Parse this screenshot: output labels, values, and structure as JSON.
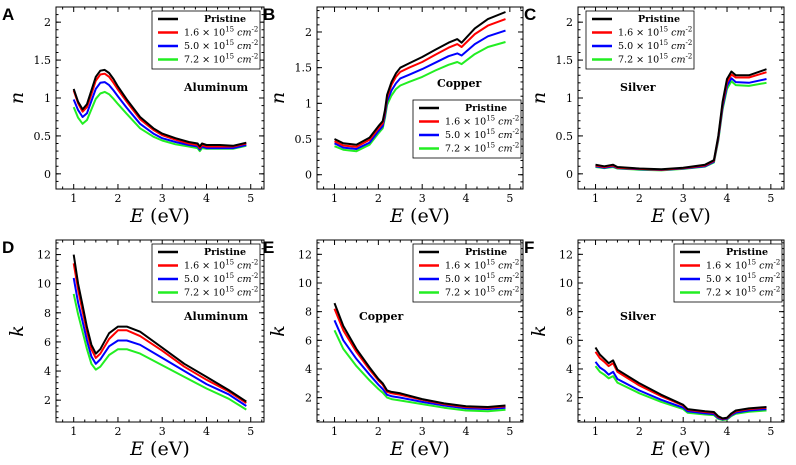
{
  "figure": {
    "series_styles": [
      {
        "name": "Pristine",
        "color": "#000000"
      },
      {
        "name": "1.6 × 10^15 cm^-2",
        "color": "#ff0000"
      },
      {
        "name": "5.0 × 10^15 cm^-2",
        "color": "#0000ff"
      },
      {
        "name": "7.2 × 10^15 cm^-2",
        "color": "#22ee22"
      }
    ]
  },
  "chart_data": [
    {
      "panel": "A",
      "type": "line",
      "material": "Aluminum",
      "xlabel": "E (eV)",
      "ylabel": "n",
      "xlim": [
        0.6,
        5.3
      ],
      "ylim": [
        -0.2,
        2.2
      ],
      "xticks": [
        1,
        2,
        3,
        4,
        5
      ],
      "yticks": [
        0,
        0.5,
        1,
        1.5,
        2
      ],
      "legend": [
        "Pristine",
        "1.6 × 10^15 cm^-2",
        "5.0 × 10^15 cm^-2",
        "7.2 × 10^15 cm^-2"
      ],
      "x": [
        1.0,
        1.1,
        1.2,
        1.3,
        1.4,
        1.5,
        1.6,
        1.7,
        1.8,
        1.9,
        2.0,
        2.2,
        2.5,
        2.8,
        3.0,
        3.3,
        3.6,
        3.8,
        3.85,
        3.9,
        4.0,
        4.3,
        4.6,
        4.9
      ],
      "series": [
        {
          "name": "Pristine",
          "values": [
            1.12,
            0.95,
            0.85,
            0.92,
            1.1,
            1.28,
            1.36,
            1.37,
            1.33,
            1.25,
            1.15,
            0.98,
            0.75,
            0.6,
            0.53,
            0.47,
            0.42,
            0.4,
            0.36,
            0.4,
            0.38,
            0.38,
            0.37,
            0.41
          ]
        },
        {
          "name": "1.6 × 10^15 cm^-2",
          "values": [
            1.1,
            0.93,
            0.82,
            0.88,
            1.05,
            1.23,
            1.31,
            1.32,
            1.28,
            1.2,
            1.11,
            0.95,
            0.72,
            0.58,
            0.51,
            0.45,
            0.4,
            0.38,
            0.34,
            0.38,
            0.36,
            0.36,
            0.36,
            0.4
          ]
        },
        {
          "name": "5.0 × 10^15 cm^-2",
          "values": [
            0.98,
            0.84,
            0.75,
            0.8,
            0.96,
            1.12,
            1.2,
            1.21,
            1.17,
            1.1,
            1.02,
            0.87,
            0.66,
            0.53,
            0.47,
            0.42,
            0.38,
            0.36,
            0.32,
            0.36,
            0.34,
            0.34,
            0.34,
            0.38
          ]
        },
        {
          "name": "7.2 × 10^15 cm^-2",
          "values": [
            0.88,
            0.74,
            0.66,
            0.71,
            0.85,
            0.99,
            1.06,
            1.08,
            1.05,
            0.99,
            0.92,
            0.79,
            0.6,
            0.49,
            0.44,
            0.39,
            0.36,
            0.34,
            0.3,
            0.34,
            0.33,
            0.33,
            0.33,
            0.37
          ]
        }
      ]
    },
    {
      "panel": "B",
      "type": "line",
      "material": "Copper",
      "xlabel": "E (eV)",
      "ylabel": "n",
      "xlim": [
        0.6,
        5.3
      ],
      "ylim": [
        -0.2,
        2.35
      ],
      "xticks": [
        1,
        2,
        3,
        4,
        5
      ],
      "yticks": [
        0,
        0.5,
        1,
        1.5,
        2
      ],
      "legend": [
        "Pristine",
        "1.6 × 10^15 cm^-2",
        "5.0 × 10^15 cm^-2",
        "7.2 × 10^15 cm^-2"
      ],
      "x": [
        1.0,
        1.2,
        1.5,
        1.8,
        2.0,
        2.1,
        2.15,
        2.2,
        2.3,
        2.4,
        2.5,
        2.7,
        3.0,
        3.3,
        3.6,
        3.8,
        3.9,
        4.2,
        4.5,
        4.9
      ],
      "series": [
        {
          "name": "Pristine",
          "values": [
            0.5,
            0.44,
            0.42,
            0.52,
            0.68,
            0.75,
            0.9,
            1.12,
            1.3,
            1.42,
            1.5,
            1.56,
            1.65,
            1.75,
            1.85,
            1.9,
            1.85,
            2.05,
            2.18,
            2.28
          ]
        },
        {
          "name": "1.6 × 10^15 cm^-2",
          "values": [
            0.47,
            0.41,
            0.39,
            0.49,
            0.65,
            0.72,
            0.87,
            1.08,
            1.26,
            1.37,
            1.44,
            1.5,
            1.58,
            1.68,
            1.78,
            1.83,
            1.79,
            1.97,
            2.09,
            2.18
          ]
        },
        {
          "name": "5.0 × 10^15 cm^-2",
          "values": [
            0.44,
            0.38,
            0.36,
            0.45,
            0.61,
            0.68,
            0.83,
            1.03,
            1.18,
            1.28,
            1.35,
            1.4,
            1.48,
            1.57,
            1.66,
            1.7,
            1.67,
            1.83,
            1.94,
            2.02
          ]
        },
        {
          "name": "7.2 × 10^15 cm^-2",
          "values": [
            0.4,
            0.35,
            0.33,
            0.42,
            0.58,
            0.65,
            0.79,
            0.98,
            1.11,
            1.2,
            1.25,
            1.3,
            1.37,
            1.46,
            1.54,
            1.58,
            1.55,
            1.69,
            1.79,
            1.86
          ]
        }
      ]
    },
    {
      "panel": "C",
      "type": "line",
      "material": "Silver",
      "xlabel": "E (eV)",
      "ylabel": "n",
      "xlim": [
        0.6,
        5.3
      ],
      "ylim": [
        -0.2,
        2.2
      ],
      "xticks": [
        1,
        2,
        3,
        4,
        5
      ],
      "yticks": [
        0,
        0.5,
        1,
        1.5,
        2
      ],
      "legend": [
        "Pristine",
        "1.6 × 10^15 cm^-2",
        "5.0 × 10^15 cm^-2",
        "7.2 × 10^15 cm^-2"
      ],
      "x": [
        1.0,
        1.2,
        1.4,
        1.5,
        2.0,
        2.5,
        3.0,
        3.5,
        3.7,
        3.8,
        3.9,
        4.0,
        4.1,
        4.2,
        4.5,
        4.9
      ],
      "series": [
        {
          "name": "Pristine",
          "values": [
            0.12,
            0.1,
            0.12,
            0.09,
            0.07,
            0.06,
            0.08,
            0.12,
            0.18,
            0.5,
            0.95,
            1.25,
            1.35,
            1.3,
            1.3,
            1.38
          ]
        },
        {
          "name": "1.6 × 10^15 cm^-2",
          "values": [
            0.11,
            0.09,
            0.11,
            0.08,
            0.065,
            0.055,
            0.075,
            0.11,
            0.17,
            0.48,
            0.92,
            1.21,
            1.31,
            1.27,
            1.27,
            1.34
          ]
        },
        {
          "name": "5.0 × 10^15 cm^-2",
          "values": [
            0.1,
            0.08,
            0.1,
            0.075,
            0.06,
            0.05,
            0.07,
            0.1,
            0.16,
            0.46,
            0.88,
            1.16,
            1.26,
            1.21,
            1.2,
            1.25
          ]
        },
        {
          "name": "7.2 × 10^15 cm^-2",
          "values": [
            0.09,
            0.075,
            0.09,
            0.07,
            0.055,
            0.045,
            0.065,
            0.095,
            0.15,
            0.44,
            0.85,
            1.12,
            1.22,
            1.17,
            1.16,
            1.2
          ]
        }
      ]
    },
    {
      "panel": "D",
      "type": "line",
      "material": "Aluminum",
      "xlabel": "E (eV)",
      "ylabel": "k",
      "xlim": [
        0.6,
        5.3
      ],
      "ylim": [
        0.5,
        13.0
      ],
      "xticks": [
        1,
        2,
        3,
        4,
        5
      ],
      "yticks": [
        2,
        4,
        6,
        8,
        10,
        12
      ],
      "legend": [
        "Pristine",
        "1.6 × 10^15 cm^-2",
        "5.0 × 10^15 cm^-2",
        "7.2 × 10^15 cm^-2"
      ],
      "x": [
        1.0,
        1.1,
        1.2,
        1.3,
        1.4,
        1.5,
        1.6,
        1.8,
        2.0,
        2.2,
        2.5,
        3.0,
        3.5,
        4.0,
        4.5,
        4.9
      ],
      "series": [
        {
          "name": "Pristine",
          "values": [
            12.0,
            10.0,
            8.5,
            7.0,
            5.8,
            5.2,
            5.5,
            6.6,
            7.05,
            7.05,
            6.7,
            5.6,
            4.5,
            3.6,
            2.7,
            1.9
          ]
        },
        {
          "name": "1.6 × 10^15 cm^-2",
          "values": [
            11.4,
            9.6,
            8.1,
            6.7,
            5.5,
            4.9,
            5.2,
            6.2,
            6.8,
            6.8,
            6.4,
            5.4,
            4.3,
            3.4,
            2.6,
            1.8
          ]
        },
        {
          "name": "5.0 × 10^15 cm^-2",
          "values": [
            10.4,
            8.7,
            7.4,
            6.1,
            5.0,
            4.5,
            4.8,
            5.7,
            6.1,
            6.1,
            5.8,
            4.9,
            4.0,
            3.1,
            2.4,
            1.6
          ]
        },
        {
          "name": "7.2 × 10^15 cm^-2",
          "values": [
            9.3,
            7.9,
            6.7,
            5.5,
            4.5,
            4.1,
            4.3,
            5.1,
            5.5,
            5.5,
            5.2,
            4.4,
            3.6,
            2.8,
            2.1,
            1.35
          ]
        }
      ]
    },
    {
      "panel": "E",
      "type": "line",
      "material": "Copper",
      "xlabel": "E (eV)",
      "ylabel": "k",
      "xlim": [
        0.6,
        5.3
      ],
      "ylim": [
        0.3,
        13.0
      ],
      "xticks": [
        1,
        2,
        3,
        4,
        5
      ],
      "yticks": [
        2,
        4,
        6,
        8,
        10,
        12
      ],
      "legend": [
        "Pristine",
        "1.6 × 10^15 cm^-2",
        "5.0 × 10^15 cm^-2",
        "7.2 × 10^15 cm^-2"
      ],
      "x": [
        1.0,
        1.2,
        1.5,
        1.8,
        2.0,
        2.1,
        2.2,
        2.3,
        2.5,
        3.0,
        3.5,
        4.0,
        4.5,
        4.9
      ],
      "series": [
        {
          "name": "Pristine",
          "values": [
            8.6,
            7.0,
            5.4,
            4.1,
            3.3,
            3.0,
            2.5,
            2.4,
            2.3,
            1.9,
            1.6,
            1.4,
            1.35,
            1.45
          ]
        },
        {
          "name": "1.6 × 10^15 cm^-2",
          "values": [
            8.2,
            6.7,
            5.2,
            3.95,
            3.2,
            2.9,
            2.4,
            2.3,
            2.2,
            1.85,
            1.55,
            1.35,
            1.3,
            1.4
          ]
        },
        {
          "name": "5.0 × 10^15 cm^-2",
          "values": [
            7.4,
            6.0,
            4.7,
            3.6,
            2.9,
            2.6,
            2.2,
            2.1,
            2.0,
            1.7,
            1.45,
            1.25,
            1.2,
            1.3
          ]
        },
        {
          "name": "7.2 × 10^15 cm^-2",
          "values": [
            6.7,
            5.4,
            4.2,
            3.2,
            2.6,
            2.35,
            2.0,
            1.9,
            1.8,
            1.55,
            1.3,
            1.1,
            1.05,
            1.15
          ]
        }
      ]
    },
    {
      "panel": "F",
      "type": "line",
      "material": "Silver",
      "xlabel": "E (eV)",
      "ylabel": "k",
      "xlim": [
        0.6,
        5.3
      ],
      "ylim": [
        0.3,
        13.0
      ],
      "xticks": [
        1,
        2,
        3,
        4,
        5
      ],
      "yticks": [
        2,
        4,
        6,
        8,
        10,
        12
      ],
      "legend": [
        "Pristine",
        "1.6 × 10^15 cm^-2",
        "5.0 × 10^15 cm^-2",
        "7.2 × 10^15 cm^-2"
      ],
      "x": [
        1.0,
        1.1,
        1.2,
        1.3,
        1.4,
        1.5,
        2.0,
        2.5,
        3.0,
        3.1,
        3.5,
        3.7,
        3.8,
        3.9,
        4.0,
        4.1,
        4.2,
        4.5,
        4.9
      ],
      "series": [
        {
          "name": "Pristine",
          "values": [
            5.5,
            5.0,
            4.7,
            4.4,
            4.6,
            3.95,
            3.0,
            2.2,
            1.5,
            1.2,
            1.05,
            1.0,
            0.7,
            0.55,
            0.6,
            0.9,
            1.1,
            1.25,
            1.35
          ]
        },
        {
          "name": "1.6 × 10^15 cm^-2",
          "values": [
            5.2,
            4.75,
            4.5,
            4.2,
            4.4,
            3.8,
            2.85,
            2.1,
            1.45,
            1.15,
            1.0,
            0.95,
            0.65,
            0.52,
            0.57,
            0.85,
            1.05,
            1.2,
            1.3
          ]
        },
        {
          "name": "5.0 × 10^15 cm^-2",
          "values": [
            4.5,
            4.1,
            3.9,
            3.6,
            3.8,
            3.3,
            2.5,
            1.85,
            1.3,
            1.05,
            0.9,
            0.85,
            0.58,
            0.48,
            0.52,
            0.78,
            0.95,
            1.1,
            1.2
          ]
        },
        {
          "name": "7.2 × 10^15 cm^-2",
          "values": [
            4.2,
            3.8,
            3.6,
            3.35,
            3.5,
            3.05,
            2.3,
            1.7,
            1.2,
            0.95,
            0.82,
            0.78,
            0.52,
            0.44,
            0.48,
            0.72,
            0.88,
            1.02,
            1.1
          ]
        }
      ]
    }
  ]
}
